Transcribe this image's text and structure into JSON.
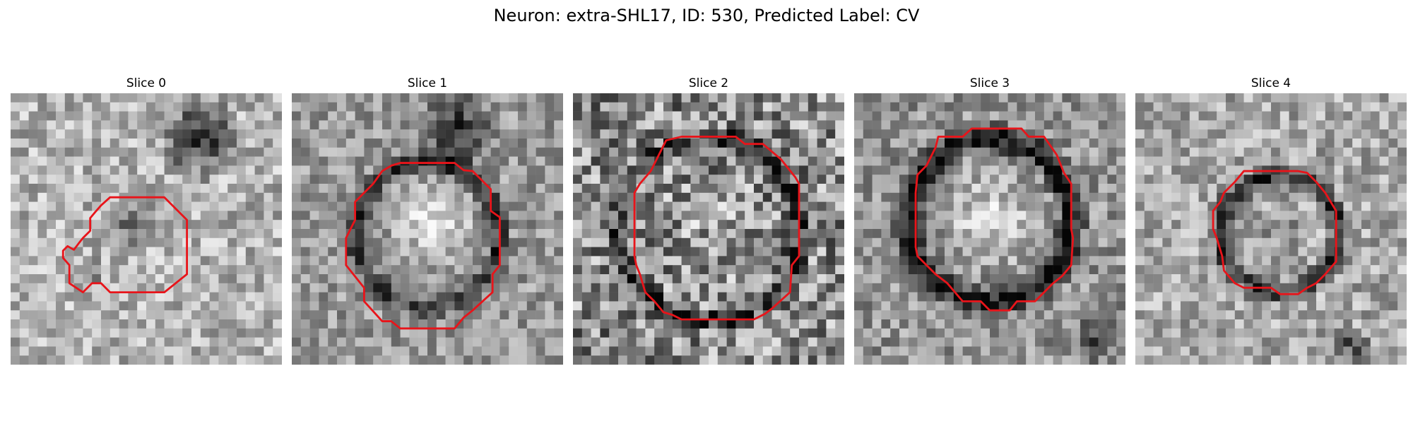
{
  "figure": {
    "suptitle": "Neuron: extra-SHL17, ID: 530, Predicted Label: CV"
  },
  "panels": [
    {
      "title": "Slice 0",
      "contour_color": "#e8141a",
      "image_description": "grayscale electron-microscopy patch with irregular small contour at left-center; dark mass upper right"
    },
    {
      "title": "Slice 1",
      "contour_color": "#e8141a",
      "image_description": "grayscale patch with bright round vesicle interior and dark rim; red polygon contour"
    },
    {
      "title": "Slice 2",
      "contour_color": "#e8141a",
      "image_description": "noisy grayscale patch with large ring-shaped dark boundary; red polygon contour"
    },
    {
      "title": "Slice 3",
      "contour_color": "#e8141a",
      "image_description": "grayscale patch with bright center and thick dark ring; red polygon contour"
    },
    {
      "title": "Slice 4",
      "contour_color": "#e8141a",
      "image_description": "grayscale patch with smaller dark ring in center; red polygon contour"
    }
  ]
}
